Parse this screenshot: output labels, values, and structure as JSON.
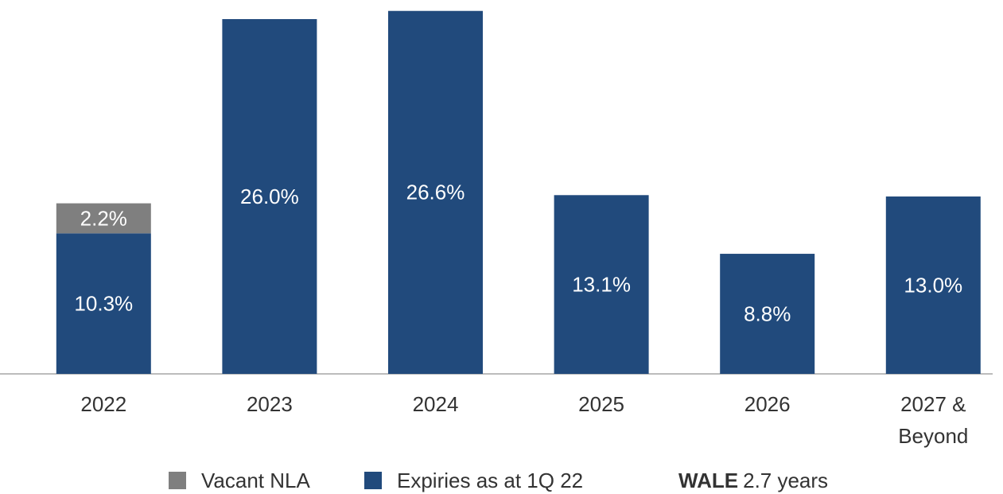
{
  "chart_data": {
    "type": "stacked_bar",
    "categories": [
      "2022",
      "2023",
      "2024",
      "2025",
      "2026",
      "2027 & Beyond"
    ],
    "series": [
      {
        "name": "Vacant NLA",
        "color": "#7f7f7f",
        "values": [
          2.2,
          null,
          null,
          null,
          null,
          null
        ],
        "value_labels": [
          "2.2%",
          null,
          null,
          null,
          null,
          null
        ]
      },
      {
        "name": "Expiries as at 1Q 22",
        "color": "#214a7c",
        "values": [
          10.3,
          26.0,
          26.6,
          13.1,
          8.8,
          13.0
        ],
        "value_labels": [
          "10.3%",
          "26.0%",
          "26.6%",
          "13.1%",
          "8.8%",
          "13.0%"
        ]
      }
    ],
    "ylim": [
      0,
      27.4
    ],
    "annotation": {
      "label": "WALE",
      "text": "2.7 years"
    }
  }
}
